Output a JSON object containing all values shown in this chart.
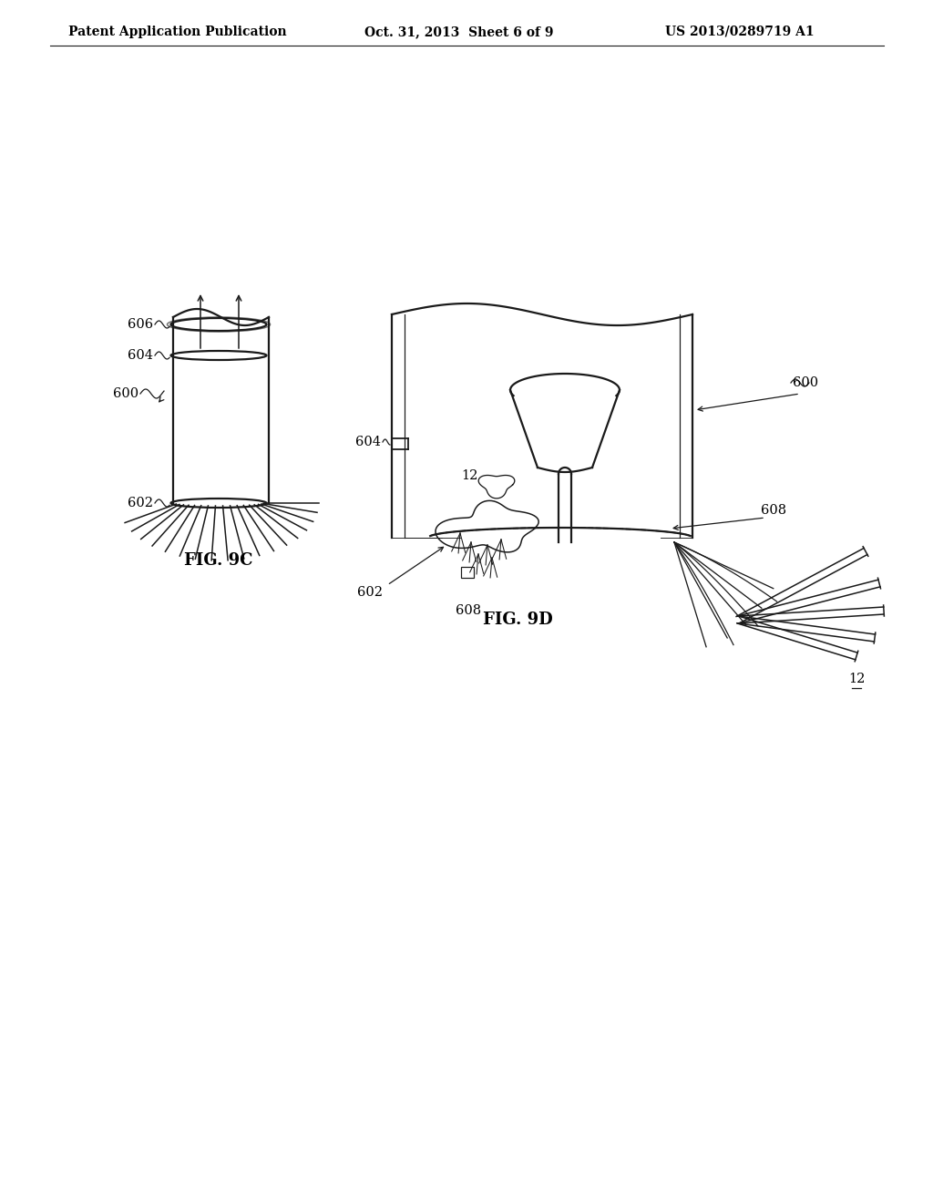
{
  "background_color": "#ffffff",
  "header_left": "Patent Application Publication",
  "header_center": "Oct. 31, 2013  Sheet 6 of 9",
  "header_right": "US 2013/0289719 A1",
  "fig9c_label": "FIG. 9C",
  "fig9d_label": "FIG. 9D",
  "line_color": "#1a1a1a",
  "text_color": "#000000",
  "header_fontsize": 10,
  "label_fontsize": 10.5,
  "fig_label_fontsize": 13
}
